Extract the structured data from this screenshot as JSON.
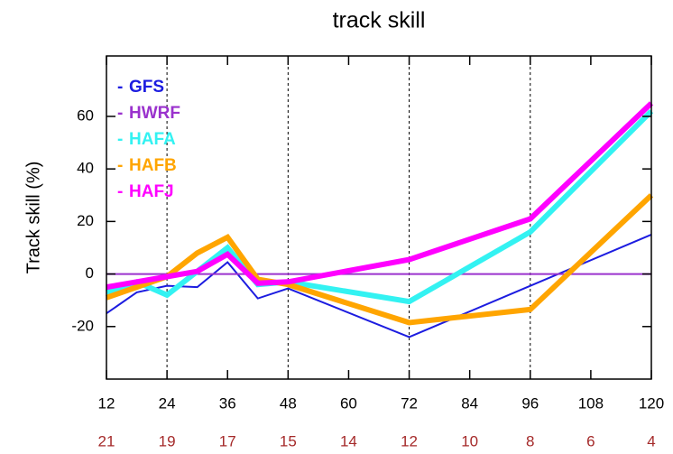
{
  "chart_data": {
    "type": "line",
    "title": "track skill",
    "y_label": "Track skill (%)",
    "x": [
      12,
      18,
      24,
      30,
      36,
      42,
      48,
      72,
      96,
      120
    ],
    "series": [
      {
        "name": "GFS",
        "color": "#1c1ce0",
        "width": 2,
        "values": [
          -15,
          -7,
          -4.5,
          -5,
          4.5,
          -9.3,
          -5.5,
          -24,
          -4.5,
          15
        ]
      },
      {
        "name": "HWRF",
        "color": "#9a32cd",
        "width": 2,
        "values": [
          0,
          0,
          0,
          0,
          0,
          0,
          0,
          0,
          0,
          0
        ]
      },
      {
        "name": "HAFA",
        "color": "#33f2f2",
        "width": 6,
        "values": [
          -7,
          -3,
          -8,
          1,
          10,
          -4,
          -3,
          -10.5,
          16,
          62
        ]
      },
      {
        "name": "HAFB",
        "color": "#ffa500",
        "width": 6,
        "values": [
          -9,
          -5,
          -1,
          8,
          14,
          -2,
          -4,
          -18.5,
          -13.5,
          30
        ]
      },
      {
        "name": "HAFJ",
        "color": "#ff00ff",
        "width": 6,
        "values": [
          -5,
          -3,
          -1,
          1,
          7.5,
          -3.5,
          -3,
          5.5,
          21,
          65
        ]
      }
    ],
    "xlim": [
      12,
      120
    ],
    "xticks": [
      12,
      24,
      36,
      48,
      60,
      72,
      84,
      96,
      108,
      120
    ],
    "case_counts": [
      21,
      19,
      17,
      15,
      14,
      12,
      10,
      8,
      6,
      4
    ],
    "case_count_color": "#a52a2a",
    "ylim": [
      -40,
      83
    ],
    "yticks": [
      -20,
      0,
      20,
      40,
      60
    ],
    "dashed_x": [
      24,
      48,
      72,
      96
    ]
  }
}
